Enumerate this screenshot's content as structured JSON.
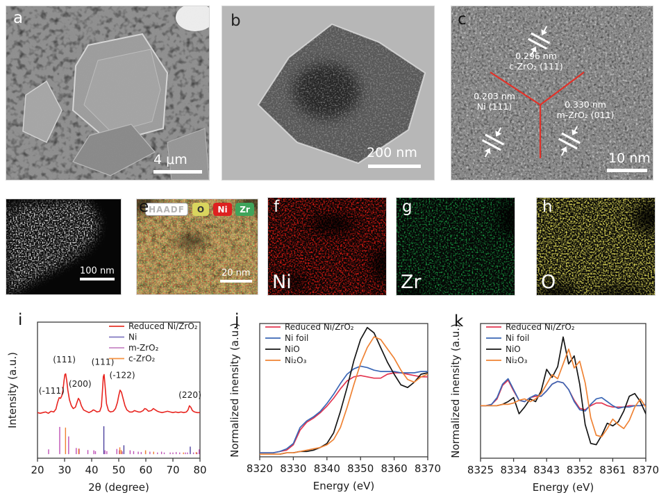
{
  "figure": {
    "panels": [
      {
        "id": "a",
        "letter": "a",
        "scale_bar": "4 μm",
        "kind": "SEM image"
      },
      {
        "id": "b",
        "letter": "b",
        "scale_bar": "200 nm",
        "kind": "TEM image"
      },
      {
        "id": "c",
        "letter": "c",
        "scale_bar": "10 nm",
        "kind": "HRTEM image",
        "annotations": [
          {
            "d": "0.296 nm",
            "phase": "c-ZrO₂ (111)"
          },
          {
            "d": "0.203 nm",
            "phase": "Ni (111)"
          },
          {
            "d": "0.330 nm",
            "phase": "m-ZrO₂ (011)"
          }
        ]
      },
      {
        "id": "d",
        "letter": "d",
        "scale_bar": "100 nm",
        "kind": "HAADF image"
      },
      {
        "id": "e",
        "letter": "e",
        "scale_bar": "20 nm",
        "kind": "EDS overlay map",
        "tags": [
          "HAADF",
          "O",
          "Ni",
          "Zr"
        ]
      },
      {
        "id": "f",
        "letter": "f",
        "element": "Ni",
        "kind": "EDS map"
      },
      {
        "id": "g",
        "letter": "g",
        "element": "Zr",
        "kind": "EDS map"
      },
      {
        "id": "h",
        "letter": "h",
        "element": "O",
        "kind": "EDS map"
      },
      {
        "id": "i",
        "letter": "i",
        "kind": "XRD pattern"
      },
      {
        "id": "j",
        "letter": "j",
        "kind": "XANES spectra"
      },
      {
        "id": "k",
        "letter": "k",
        "kind": "XANES first-derivative spectra"
      }
    ]
  },
  "chart_data": [
    {
      "type": "line+sticks",
      "title": "",
      "xlabel": "2θ (degree)",
      "ylabel": "Intensity (a.u.)",
      "xlim": [
        20,
        80
      ],
      "xticks": [
        20,
        30,
        40,
        50,
        60,
        70,
        80
      ],
      "grid": false,
      "legend_position": "top-right",
      "legend": [
        {
          "label": "Reduced Ni/ZrO₂",
          "color": "#e63226"
        },
        {
          "label": "Ni",
          "color": "#8278c0"
        },
        {
          "label": "m-ZrO₂",
          "color": "#c787c5"
        },
        {
          "label": "c-ZrO₂",
          "color": "#f59140"
        }
      ],
      "curve": {
        "name": "Reduced Ni/ZrO₂",
        "color": "#e8231e",
        "x": [
          20,
          21,
          22,
          23,
          24,
          25,
          26,
          26.8,
          27.4,
          28,
          28.5,
          29,
          29.4,
          29.8,
          30.1,
          30.4,
          30.8,
          31.2,
          31.8,
          32.5,
          33.2,
          34,
          34.6,
          35.1,
          35.6,
          36.2,
          37,
          38,
          39,
          40,
          40.6,
          41.2,
          42,
          43,
          43.6,
          44,
          44.3,
          44.6,
          45,
          45.5,
          46.2,
          47,
          48,
          48.8,
          49.5,
          50,
          50.5,
          51,
          51.6,
          52.3,
          53,
          54,
          55,
          55.8,
          56.5,
          57.3,
          58,
          59,
          59.6,
          60.2,
          61,
          62,
          62.8,
          63.5,
          64.3,
          65,
          66,
          67,
          68,
          69,
          70,
          71,
          72,
          73,
          74,
          75,
          75.6,
          76.1,
          76.6,
          77.2,
          78,
          79,
          80
        ],
        "y": [
          0.335,
          0.33,
          0.335,
          0.34,
          0.33,
          0.345,
          0.34,
          0.36,
          0.41,
          0.445,
          0.44,
          0.46,
          0.5,
          0.57,
          0.615,
          0.62,
          0.57,
          0.5,
          0.43,
          0.385,
          0.365,
          0.375,
          0.41,
          0.44,
          0.425,
          0.385,
          0.355,
          0.345,
          0.335,
          0.345,
          0.355,
          0.35,
          0.34,
          0.345,
          0.38,
          0.5,
          0.6,
          0.615,
          0.52,
          0.4,
          0.35,
          0.34,
          0.345,
          0.365,
          0.41,
          0.46,
          0.5,
          0.485,
          0.44,
          0.385,
          0.355,
          0.34,
          0.34,
          0.35,
          0.345,
          0.34,
          0.34,
          0.35,
          0.365,
          0.36,
          0.345,
          0.35,
          0.365,
          0.355,
          0.345,
          0.34,
          0.335,
          0.34,
          0.345,
          0.34,
          0.335,
          0.34,
          0.335,
          0.34,
          0.335,
          0.34,
          0.355,
          0.385,
          0.375,
          0.35,
          0.34,
          0.335,
          0.335
        ]
      },
      "sticks": [
        {
          "name": "Ni",
          "color": "#4b3f9e",
          "peaks": [
            [
              44.5,
              0.205
            ],
            [
              51.9,
              0.065
            ],
            [
              76.4,
              0.055
            ]
          ]
        },
        {
          "name": "m-ZrO₂",
          "color": "#bd4fb4",
          "peaks": [
            [
              24.1,
              0.035
            ],
            [
              28.2,
              0.2
            ],
            [
              31.5,
              0.13
            ],
            [
              34.3,
              0.045
            ],
            [
              35.4,
              0.04
            ],
            [
              38.6,
              0.03
            ],
            [
              40.8,
              0.028
            ],
            [
              41.4,
              0.022
            ],
            [
              44.9,
              0.028
            ],
            [
              45.6,
              0.022
            ],
            [
              49.3,
              0.038
            ],
            [
              50.2,
              0.028
            ],
            [
              51.3,
              0.02
            ],
            [
              54.2,
              0.028
            ],
            [
              55.5,
              0.022
            ],
            [
              57.2,
              0.018
            ],
            [
              58.3,
              0.015
            ],
            [
              59.9,
              0.018
            ],
            [
              61.5,
              0.018
            ],
            [
              62.9,
              0.015
            ],
            [
              64.3,
              0.012
            ],
            [
              65.8,
              0.018
            ],
            [
              66.8,
              0.012
            ],
            [
              69.0,
              0.012
            ],
            [
              70.0,
              0.012
            ],
            [
              71.2,
              0.015
            ],
            [
              72.5,
              0.012
            ],
            [
              74.6,
              0.012
            ],
            [
              75.4,
              0.012
            ],
            [
              77.6,
              0.012
            ],
            [
              78.9,
              0.012
            ],
            [
              79.7,
              0.035
            ]
          ]
        },
        {
          "name": "c-ZrO₂",
          "color": "#f08030",
          "peaks": [
            [
              30.35,
              0.195
            ],
            [
              35.2,
              0.04
            ],
            [
              50.4,
              0.05
            ],
            [
              50.9,
              0.03
            ],
            [
              59.9,
              0.028
            ],
            [
              62.9,
              0.018
            ],
            [
              73.9,
              0.012
            ],
            [
              78.6,
              0.015
            ]
          ]
        }
      ],
      "peak_labels": [
        {
          "text": "(-111)",
          "x": 25.2,
          "y": 0.475
        },
        {
          "text": "(111)",
          "x": 29.9,
          "y": 0.705
        },
        {
          "text": "(200)",
          "x": 35.7,
          "y": 0.525
        },
        {
          "text": "(111)",
          "x": 44.1,
          "y": 0.685
        },
        {
          "text": "(-122)",
          "x": 51.3,
          "y": 0.59
        },
        {
          "text": "(220)",
          "x": 76.3,
          "y": 0.445
        }
      ]
    },
    {
      "type": "line",
      "title": "",
      "xlabel": "Energy (eV)",
      "ylabel": "Normalized inensity (a.u.)",
      "xlim": [
        8320,
        8370
      ],
      "xticks": [
        8320,
        8330,
        8340,
        8350,
        8360,
        8370
      ],
      "grid": false,
      "legend_position": "top-left",
      "x": [
        8320,
        8322,
        8324,
        8326,
        8328,
        8330,
        8332,
        8334,
        8336,
        8338,
        8340,
        8342,
        8344,
        8346,
        8348,
        8350,
        8352,
        8354,
        8356,
        8358,
        8360,
        8362,
        8364,
        8366,
        8368,
        8370
      ],
      "series": [
        {
          "name": "Reduced Ni/ZrO₂",
          "color": "#e3344f",
          "values": [
            0.03,
            0.03,
            0.03,
            0.04,
            0.05,
            0.09,
            0.2,
            0.26,
            0.29,
            0.33,
            0.38,
            0.44,
            0.51,
            0.57,
            0.6,
            0.61,
            0.6,
            0.59,
            0.59,
            0.62,
            0.63,
            0.63,
            0.62,
            0.61,
            0.6,
            0.6
          ]
        },
        {
          "name": "Ni foil",
          "color": "#3a66b5",
          "values": [
            0.03,
            0.03,
            0.03,
            0.04,
            0.06,
            0.1,
            0.22,
            0.27,
            0.3,
            0.34,
            0.4,
            0.47,
            0.55,
            0.62,
            0.66,
            0.68,
            0.67,
            0.65,
            0.64,
            0.64,
            0.64,
            0.63,
            0.63,
            0.63,
            0.64,
            0.64
          ]
        },
        {
          "name": "NiO",
          "color": "#141414",
          "values": [
            0.02,
            0.02,
            0.02,
            0.02,
            0.03,
            0.03,
            0.04,
            0.04,
            0.05,
            0.07,
            0.1,
            0.18,
            0.34,
            0.52,
            0.72,
            0.88,
            0.97,
            0.93,
            0.82,
            0.71,
            0.62,
            0.54,
            0.52,
            0.56,
            0.62,
            0.63
          ]
        },
        {
          "name": "Ni₂O₃",
          "color": "#ef8233",
          "values": [
            0.02,
            0.02,
            0.02,
            0.02,
            0.03,
            0.03,
            0.04,
            0.05,
            0.06,
            0.07,
            0.09,
            0.13,
            0.22,
            0.37,
            0.54,
            0.7,
            0.82,
            0.9,
            0.88,
            0.81,
            0.74,
            0.65,
            0.58,
            0.56,
            0.6,
            0.62
          ]
        }
      ]
    },
    {
      "type": "line",
      "title": "",
      "xlabel": "Energy (eV)",
      "ylabel": "Normalized inensity (a.u.)",
      "xlim": [
        8325,
        8370
      ],
      "xticks": [
        8325,
        8334,
        8343,
        8352,
        8361,
        8370
      ],
      "grid": false,
      "legend_position": "top-left",
      "x": [
        8325,
        8326.5,
        8328,
        8329.5,
        8331,
        8332.5,
        8334,
        8335.5,
        8337,
        8338.5,
        8340,
        8341.5,
        8343,
        8344.5,
        8346,
        8347.5,
        8349,
        8350.5,
        8352,
        8353.5,
        8355,
        8356.5,
        8358,
        8359.5,
        8361,
        8362.5,
        8364,
        8365.5,
        8367,
        8368.5,
        8370
      ],
      "series": [
        {
          "name": "Reduced Ni/ZrO₂",
          "color": "#e3344f",
          "values": [
            0.39,
            0.39,
            0.4,
            0.44,
            0.54,
            0.58,
            0.5,
            0.43,
            0.42,
            0.45,
            0.46,
            0.46,
            0.5,
            0.55,
            0.57,
            0.56,
            0.51,
            0.43,
            0.37,
            0.36,
            0.39,
            0.41,
            0.41,
            0.39,
            0.38,
            0.38,
            0.38,
            0.39,
            0.39,
            0.39,
            0.4
          ]
        },
        {
          "name": "Ni foil",
          "color": "#3a66b5",
          "values": [
            0.39,
            0.39,
            0.4,
            0.45,
            0.55,
            0.59,
            0.51,
            0.43,
            0.42,
            0.45,
            0.47,
            0.46,
            0.5,
            0.55,
            0.57,
            0.56,
            0.51,
            0.42,
            0.36,
            0.35,
            0.4,
            0.44,
            0.45,
            0.42,
            0.39,
            0.37,
            0.38,
            0.38,
            0.39,
            0.39,
            0.4
          ]
        },
        {
          "name": "NiO",
          "color": "#141414",
          "values": [
            0.39,
            0.39,
            0.39,
            0.39,
            0.4,
            0.42,
            0.45,
            0.33,
            0.38,
            0.44,
            0.42,
            0.5,
            0.66,
            0.6,
            0.68,
            0.9,
            0.7,
            0.76,
            0.55,
            0.25,
            0.11,
            0.1,
            0.17,
            0.26,
            0.24,
            0.27,
            0.35,
            0.46,
            0.48,
            0.42,
            0.33
          ]
        },
        {
          "name": "Ni₂O₃",
          "color": "#ef8233",
          "values": [
            0.39,
            0.39,
            0.39,
            0.39,
            0.4,
            0.4,
            0.41,
            0.43,
            0.44,
            0.42,
            0.44,
            0.48,
            0.55,
            0.62,
            0.59,
            0.7,
            0.81,
            0.67,
            0.72,
            0.56,
            0.3,
            0.17,
            0.16,
            0.22,
            0.29,
            0.25,
            0.22,
            0.28,
            0.38,
            0.44,
            0.38
          ]
        }
      ]
    }
  ]
}
